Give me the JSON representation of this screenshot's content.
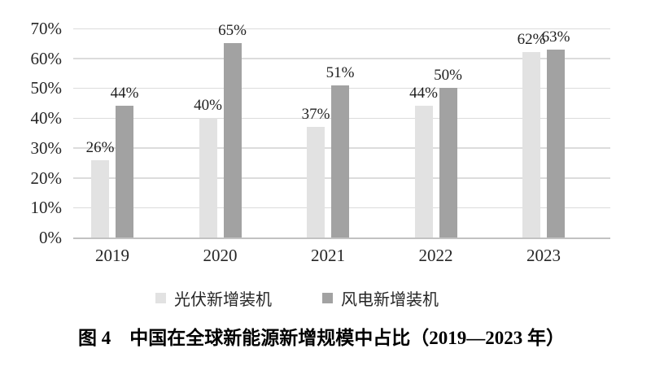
{
  "chart_data": {
    "type": "bar",
    "title": "图 4　中国在全球新能源新增规模中占比（2019—2023 年）",
    "categories": [
      "2019",
      "2020",
      "2021",
      "2022",
      "2023"
    ],
    "series": [
      {
        "name": "光伏新增装机",
        "color": "#e2e2e2",
        "values": [
          26,
          40,
          37,
          44,
          62
        ],
        "data_labels": [
          "26%",
          "40%",
          "37%",
          "44%",
          "62%"
        ]
      },
      {
        "name": "风电新增装机",
        "color": "#a2a2a2",
        "values": [
          44,
          65,
          51,
          50,
          63
        ],
        "data_labels": [
          "44%",
          "65%",
          "51%",
          "50%",
          "63%"
        ]
      }
    ],
    "xlabel": "",
    "ylabel": "",
    "ylim": [
      0,
      70
    ],
    "y_tick_step": 10,
    "y_tick_labels": [
      "0%",
      "10%",
      "20%",
      "30%",
      "40%",
      "50%",
      "60%",
      "70%"
    ],
    "grid": true,
    "legend_position": "bottom",
    "value_label_format": "percent"
  },
  "colors": {
    "gridline": "#dcdcdc",
    "axis_line": "#c2c2c2",
    "text": "#262626",
    "value_label_text": "#1f1f1f",
    "background": "#ffffff"
  }
}
